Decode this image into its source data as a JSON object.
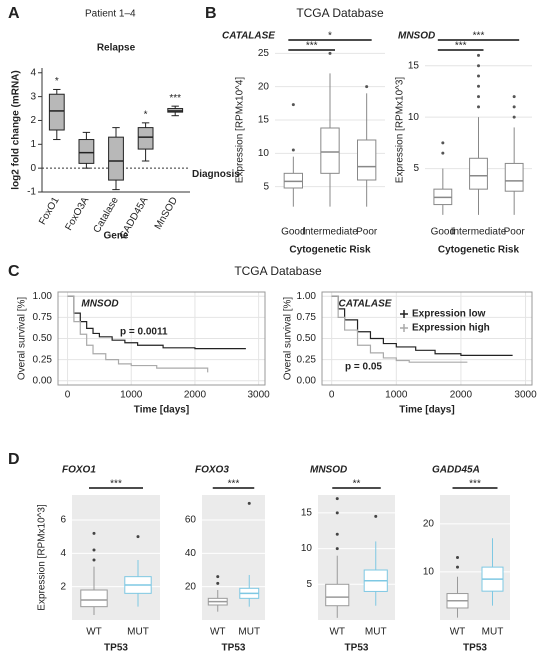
{
  "figure": {
    "panel_labels": [
      "A",
      "B",
      "C",
      "D"
    ],
    "headings": [
      "TCGA Database",
      "TCGA Database"
    ]
  },
  "chart_data": [
    {
      "type": "box",
      "subtitle": "Patient 1–4",
      "title": "Relapse",
      "ylabel": "log2 fold change (mRNA)",
      "xlabel": "Gene",
      "categories": [
        "FoxO1",
        "FoxO3A",
        "Catalase",
        "GADD45A",
        "MnSOD"
      ],
      "ylim": [
        -1,
        4.2
      ],
      "yticks": [
        -1,
        0,
        1,
        2,
        3,
        4
      ],
      "hline": 0,
      "reference_label": "Diagnosis",
      "color": "#b8b8b8",
      "annotations": [
        "*",
        null,
        null,
        "*",
        "***"
      ],
      "boxes": [
        {
          "whislo": 1.2,
          "q1": 1.6,
          "med": 2.4,
          "q3": 3.1,
          "whishi": 3.3,
          "fliers": []
        },
        {
          "whislo": 0,
          "q1": 0.2,
          "med": 0.65,
          "q3": 1.2,
          "whishi": 1.5,
          "fliers": []
        },
        {
          "whislo": -0.9,
          "q1": -0.5,
          "med": 0.3,
          "q3": 1.3,
          "whishi": 1.7,
          "fliers": []
        },
        {
          "whislo": 0.3,
          "q1": 0.8,
          "med": 1.3,
          "q3": 1.7,
          "whishi": 1.9,
          "fliers": []
        },
        {
          "whislo": 2.2,
          "q1": 2.35,
          "med": 2.4,
          "q3": 2.5,
          "whishi": 2.6,
          "fliers": []
        }
      ]
    },
    {
      "type": "box",
      "title": "CATALASE",
      "ylabel": "Expression [RPMx10^4]",
      "xlabel": "Cytogenetic Risk",
      "categories": [
        "Good",
        "Intermediate",
        "Poor"
      ],
      "ylim": [
        0,
        27
      ],
      "yticks": [
        5,
        10,
        15,
        20,
        25
      ],
      "color": "#888888",
      "annotations": [
        "***",
        "*"
      ],
      "boxes": [
        {
          "whislo": 2,
          "q1": 4.8,
          "med": 5.8,
          "q3": 7,
          "whishi": 9.5,
          "fliers": [
            10.5,
            17.3
          ]
        },
        {
          "whislo": 2,
          "q1": 7,
          "med": 10.2,
          "q3": 13.8,
          "whishi": 22,
          "fliers": [
            25
          ]
        },
        {
          "whislo": 2,
          "q1": 6,
          "med": 8,
          "q3": 12,
          "whishi": 19,
          "fliers": [
            20
          ]
        }
      ]
    },
    {
      "type": "box",
      "title": "MNSOD",
      "ylabel": "Expression [RPMx10^3]",
      "xlabel": "Cytogenetic Risk",
      "categories": [
        "Good",
        "Intermediate",
        "Poor"
      ],
      "ylim": [
        0,
        17.5
      ],
      "yticks": [
        5,
        10,
        15
      ],
      "color": "#888888",
      "annotations": [
        "***",
        "***"
      ],
      "boxes": [
        {
          "whislo": 0.5,
          "q1": 1.5,
          "med": 2.2,
          "q3": 3,
          "whishi": 5,
          "fliers": [
            6.5,
            7.5
          ]
        },
        {
          "whislo": 0.5,
          "q1": 3,
          "med": 4.3,
          "q3": 6,
          "whishi": 10,
          "fliers": [
            11,
            12,
            13,
            14,
            15,
            16
          ]
        },
        {
          "whislo": 0.5,
          "q1": 2.8,
          "med": 3.8,
          "q3": 5.5,
          "whishi": 9,
          "fliers": [
            10,
            11,
            12
          ]
        }
      ]
    },
    {
      "type": "line",
      "title": "MNSOD",
      "ylabel": "Overal survival [%]",
      "xlabel": "Time [days]",
      "annotation": "p = 0.0011",
      "xlim": [
        -150,
        3100
      ],
      "ylim": [
        -0.05,
        1.05
      ],
      "xticks": [
        0,
        1000,
        2000,
        3000
      ],
      "yticks": [
        {
          "value": 0,
          "label": "0.00"
        },
        {
          "value": 0.25,
          "label": "0.25"
        },
        {
          "value": 0.5,
          "label": "0.50"
        },
        {
          "value": 0.75,
          "label": "0.75"
        },
        {
          "value": 1,
          "label": "1.00"
        }
      ],
      "series": [
        {
          "name": "Expression low",
          "color": "#222222",
          "x": [
            0,
            100,
            200,
            300,
            400,
            500,
            700,
            900,
            1100,
            1500,
            2000,
            2800
          ],
          "values": [
            1,
            0.8,
            0.7,
            0.62,
            0.56,
            0.52,
            0.48,
            0.45,
            0.42,
            0.39,
            0.38,
            0.38
          ]
        },
        {
          "name": "Expression high",
          "color": "#aaaaaa",
          "x": [
            0,
            100,
            200,
            300,
            400,
            600,
            800,
            1000,
            1400,
            2200
          ],
          "values": [
            1,
            0.7,
            0.55,
            0.42,
            0.32,
            0.25,
            0.2,
            0.18,
            0.15,
            0.1
          ]
        }
      ]
    },
    {
      "type": "line",
      "title": "CATALASE",
      "ylabel": "Overal survival [%]",
      "xlabel": "Time [days]",
      "annotation": "p = 0.05",
      "legend": "upper right",
      "xlim": [
        -150,
        3100
      ],
      "ylim": [
        -0.05,
        1.05
      ],
      "xticks": [
        0,
        1000,
        2000,
        3000
      ],
      "yticks": [
        {
          "value": 0,
          "label": "0.00"
        },
        {
          "value": 0.25,
          "label": "0.25"
        },
        {
          "value": 0.5,
          "label": "0.50"
        },
        {
          "value": 0.75,
          "label": "0.75"
        },
        {
          "value": 1,
          "label": "1.00"
        }
      ],
      "series": [
        {
          "name": "Expression low",
          "color": "#222222",
          "x": [
            0,
            100,
            200,
            400,
            600,
            800,
            1000,
            1300,
            1600,
            2000,
            2800
          ],
          "values": [
            1,
            0.85,
            0.72,
            0.58,
            0.5,
            0.44,
            0.4,
            0.36,
            0.32,
            0.3,
            0.3
          ]
        },
        {
          "name": "Expression high",
          "color": "#aaaaaa",
          "x": [
            0,
            100,
            200,
            400,
            600,
            800,
            1000,
            1200,
            2100
          ],
          "values": [
            1,
            0.75,
            0.6,
            0.42,
            0.33,
            0.27,
            0.24,
            0.22,
            0.22
          ]
        }
      ]
    },
    {
      "type": "box",
      "title": "FOXO1",
      "ylabel": "Expression [RPMx10^3]",
      "xlabel": "TP53",
      "categories": [
        "WT",
        "MUT"
      ],
      "ylim": [
        0,
        7.5
      ],
      "yticks": [
        2,
        4,
        6
      ],
      "colors": [
        "#9a9a9a",
        "#7ec8e3"
      ],
      "annotations": [
        "***"
      ],
      "boxes": [
        {
          "whislo": 0.3,
          "q1": 0.8,
          "med": 1.2,
          "q3": 1.8,
          "whishi": 3.2,
          "fliers": [
            3.6,
            4.2,
            5.2
          ]
        },
        {
          "whislo": 0.8,
          "q1": 1.6,
          "med": 2.1,
          "q3": 2.6,
          "whishi": 3.6,
          "fliers": [
            5
          ]
        }
      ]
    },
    {
      "type": "box",
      "title": "FOXO3",
      "xlabel": "TP53",
      "categories": [
        "WT",
        "MUT"
      ],
      "ylim": [
        0,
        75
      ],
      "yticks": [
        20,
        40,
        60
      ],
      "colors": [
        "#9a9a9a",
        "#7ec8e3"
      ],
      "annotations": [
        "***"
      ],
      "boxes": [
        {
          "whislo": 5,
          "q1": 9,
          "med": 11,
          "q3": 13,
          "whishi": 18,
          "fliers": [
            22,
            26
          ]
        },
        {
          "whislo": 8,
          "q1": 13,
          "med": 16,
          "q3": 19,
          "whishi": 27,
          "fliers": [
            70
          ]
        }
      ]
    },
    {
      "type": "box",
      "title": "MNSOD",
      "xlabel": "TP53",
      "categories": [
        "WT",
        "MUT"
      ],
      "ylim": [
        0,
        17.5
      ],
      "yticks": [
        5,
        10,
        15
      ],
      "colors": [
        "#9a9a9a",
        "#7ec8e3"
      ],
      "annotations": [
        "**"
      ],
      "boxes": [
        {
          "whislo": 0.3,
          "q1": 2,
          "med": 3.2,
          "q3": 5,
          "whishi": 9,
          "fliers": [
            10,
            12,
            15,
            17
          ]
        },
        {
          "whislo": 2,
          "q1": 4,
          "med": 5.5,
          "q3": 7,
          "whishi": 11,
          "fliers": [
            14.5
          ]
        }
      ]
    },
    {
      "type": "box",
      "title": "GADD45A",
      "xlabel": "TP53",
      "categories": [
        "WT",
        "MUT"
      ],
      "ylim": [
        0,
        26
      ],
      "yticks": [
        10,
        20
      ],
      "colors": [
        "#9a9a9a",
        "#7ec8e3"
      ],
      "annotations": [
        "***"
      ],
      "boxes": [
        {
          "whislo": 0.5,
          "q1": 2.5,
          "med": 4,
          "q3": 5.5,
          "whishi": 9,
          "fliers": [
            11,
            13
          ]
        },
        {
          "whislo": 3,
          "q1": 6,
          "med": 8.5,
          "q3": 11,
          "whishi": 17,
          "fliers": []
        }
      ]
    }
  ]
}
